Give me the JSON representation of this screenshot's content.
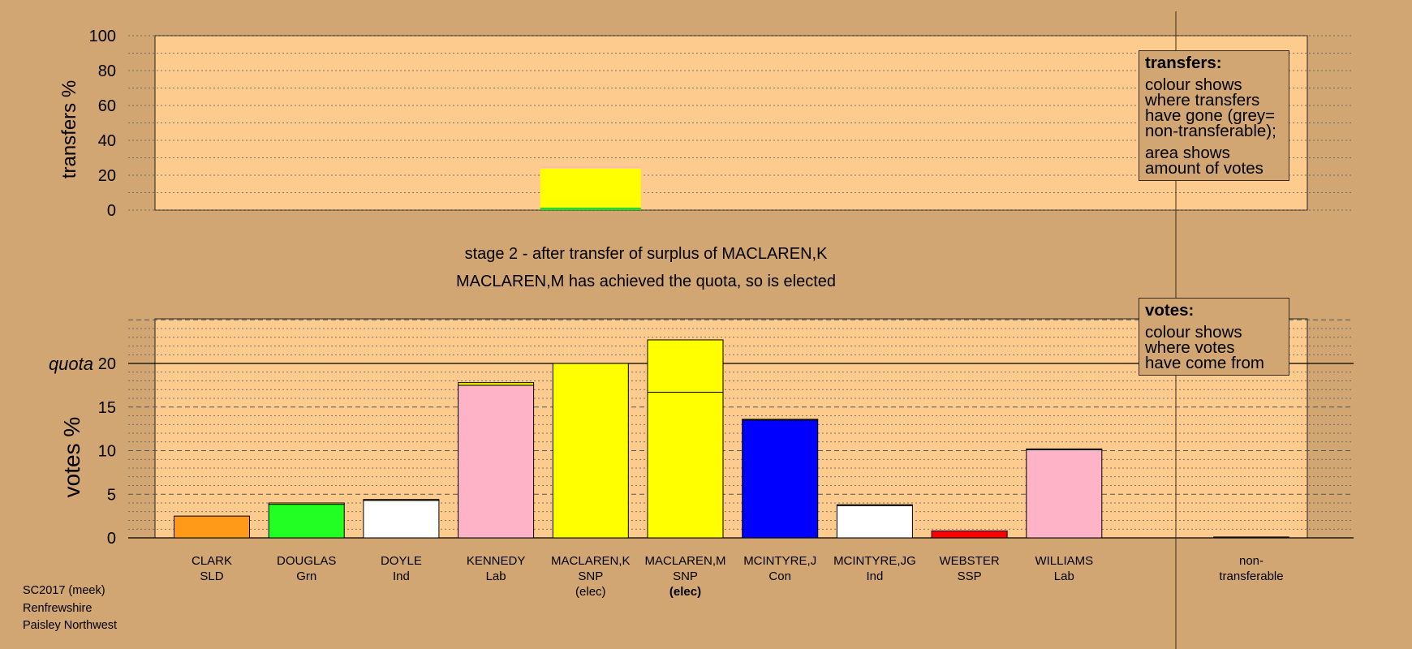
{
  "chart_data": [
    {
      "type": "bar",
      "ylabel": "transfers %",
      "ylim": [
        0,
        100
      ],
      "yticks": [
        0,
        20,
        40,
        60,
        80,
        100
      ],
      "grid": true,
      "categories": [
        "CLARK",
        "DOUGLAS",
        "DOYLE",
        "KENNEDY",
        "MACLAREN,K",
        "MACLAREN,M",
        "MCINTYRE,J",
        "MCINTYRE,JG",
        "WEBSTER",
        "WILLIAMS",
        "non-transferable"
      ],
      "bars": [
        {
          "candidate_index": 4,
          "segments": [
            {
              "value": 1.5,
              "color": "#29d929"
            },
            {
              "value": 22.5,
              "color": "#ffff00"
            },
            {
              "value": 1,
              "color": "#ffb3c6"
            }
          ]
        }
      ],
      "legend": {
        "title": "transfers:",
        "lines": [
          "colour shows",
          "where transfers",
          "have gone (grey=",
          "non-transferable);"
        ],
        "lines2": [
          "area shows",
          "amount of votes"
        ],
        "placement": "top-right"
      }
    },
    {
      "type": "bar",
      "ylabel": "votes %",
      "ylim": [
        0,
        25
      ],
      "yticks": [
        0,
        5,
        10,
        15,
        20
      ],
      "quota": 20,
      "quota_label": "quota",
      "grid": true,
      "categories": [
        {
          "name": "CLARK",
          "party": "SLD",
          "note": ""
        },
        {
          "name": "DOUGLAS",
          "party": "Grn",
          "note": ""
        },
        {
          "name": "DOYLE",
          "party": "Ind",
          "note": ""
        },
        {
          "name": "KENNEDY",
          "party": "Lab",
          "note": ""
        },
        {
          "name": "MACLAREN,K",
          "party": "SNP",
          "note": "(elec)"
        },
        {
          "name": "MACLAREN,M",
          "party": "SNP",
          "note": "(elec)"
        },
        {
          "name": "MCINTYRE,J",
          "party": "Con",
          "note": ""
        },
        {
          "name": "MCINTYRE,JG",
          "party": "Ind",
          "note": ""
        },
        {
          "name": "WEBSTER",
          "party": "SSP",
          "note": ""
        },
        {
          "name": "WILLIAMS",
          "party": "Lab",
          "note": ""
        },
        {
          "name": "non-",
          "party": "transferable",
          "note": ""
        }
      ],
      "bars": [
        {
          "segments": [
            {
              "value": 2.5,
              "color": "#ff9a19"
            }
          ]
        },
        {
          "segments": [
            {
              "value": 3.85,
              "color": "#22ff22"
            },
            {
              "value": 0.15,
              "color": "#ffff00"
            }
          ]
        },
        {
          "segments": [
            {
              "value": 4.3,
              "color": "#ffffff"
            },
            {
              "value": 0.1,
              "color": "#ffff00"
            }
          ]
        },
        {
          "segments": [
            {
              "value": 17.5,
              "color": "#ffb3c6"
            },
            {
              "value": 0.3,
              "color": "#ffff00"
            }
          ]
        },
        {
          "segments": [
            {
              "value": 20.0,
              "color": "#ffff00"
            }
          ]
        },
        {
          "segments": [
            {
              "value": 16.7,
              "color": "#ffff00"
            },
            {
              "value": 6.0,
              "color": "#ffff00"
            }
          ]
        },
        {
          "segments": [
            {
              "value": 13.5,
              "color": "#0000ff"
            },
            {
              "value": 0.1,
              "color": "#ffff00"
            }
          ]
        },
        {
          "segments": [
            {
              "value": 3.7,
              "color": "#ffffff"
            },
            {
              "value": 0.1,
              "color": "#ffff00"
            }
          ]
        },
        {
          "segments": [
            {
              "value": 0.8,
              "color": "#ff0000"
            }
          ]
        },
        {
          "segments": [
            {
              "value": 10.1,
              "color": "#ffb3c6"
            },
            {
              "value": 0.1,
              "color": "#ffff00"
            }
          ]
        },
        {
          "segments": [
            {
              "value": 0.1,
              "color": "#999999"
            }
          ]
        }
      ],
      "legend": {
        "title": "votes:",
        "lines": [
          "colour shows",
          "where votes",
          "have come from"
        ],
        "placement": "top-right"
      }
    }
  ],
  "stage_line1": "stage 2 - after transfer of surplus of MACLAREN,K",
  "stage_line2": "MACLAREN,M has achieved the quota, so is elected",
  "credit": {
    "line1": "SC2017 (meek)",
    "line2": "Renfrewshire",
    "line3": "Paisley Northwest"
  },
  "colors": {
    "background": "#d2a673",
    "plot_area": "#fecb8e"
  }
}
